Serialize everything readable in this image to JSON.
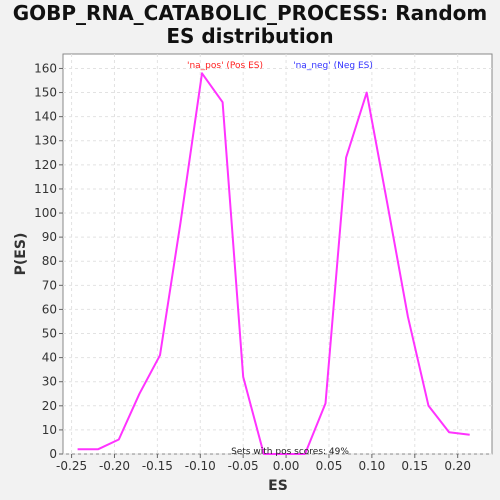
{
  "chart_data": {
    "type": "line",
    "title_lines": [
      "GOBP_RNA_CATABOLIC_PROCESS: Random",
      "ES distribution"
    ],
    "xlabel": "ES",
    "ylabel": "P(ES)",
    "xlim": [
      -0.26,
      0.24
    ],
    "ylim": [
      0,
      166
    ],
    "xticks": [
      -0.25,
      -0.2,
      -0.15,
      -0.1,
      -0.05,
      0.0,
      0.05,
      0.1,
      0.15,
      0.2
    ],
    "xtick_labels": [
      "-0.25",
      "-0.20",
      "-0.15",
      "-0.10",
      "-0.05",
      "0.00",
      "0.05",
      "0.10",
      "0.15",
      "0.20"
    ],
    "yticks": [
      0,
      10,
      20,
      30,
      40,
      50,
      60,
      70,
      80,
      90,
      100,
      110,
      120,
      130,
      140,
      150,
      160
    ],
    "grid": true,
    "series": [
      {
        "color": "#ff33ff",
        "x": [
          -0.243,
          -0.219,
          -0.195,
          -0.171,
          -0.147,
          -0.123,
          -0.098,
          -0.074,
          -0.05,
          -0.026,
          -0.002,
          0.022,
          0.046,
          0.07,
          0.094,
          0.118,
          0.142,
          0.166,
          0.19,
          0.214
        ],
        "y": [
          2,
          2,
          6,
          25,
          41,
          96,
          158,
          146,
          32,
          0,
          0,
          0,
          21,
          123,
          150,
          104,
          57,
          20,
          9,
          8
        ]
      }
    ],
    "legend": {
      "placement": "top",
      "entries": [
        {
          "label": "'na_pos' (Pos ES)",
          "color": "#ff2020"
        },
        {
          "label": "'na_neg' (Neg ES)",
          "color": "#3333ff"
        }
      ]
    },
    "annotation": "Sets with pos scores: 49%"
  }
}
